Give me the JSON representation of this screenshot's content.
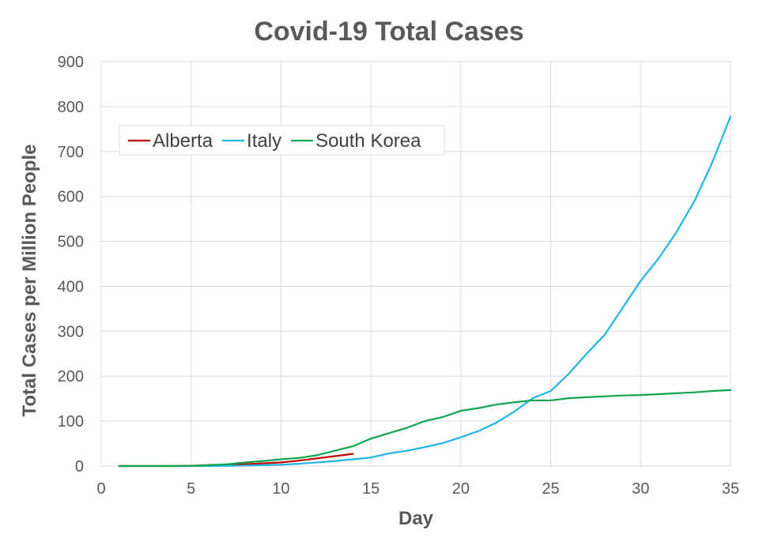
{
  "chart_data": {
    "type": "line",
    "title": "Covid-19 Total Cases",
    "xlabel": "Day",
    "ylabel": "Total Cases per Million People",
    "xlim": [
      0,
      35
    ],
    "ylim": [
      0,
      900
    ],
    "x_ticks": [
      0,
      5,
      10,
      15,
      20,
      25,
      30,
      35
    ],
    "y_ticks": [
      0,
      100,
      200,
      300,
      400,
      500,
      600,
      700,
      800,
      900
    ],
    "grid": true,
    "legend_position": "top-left",
    "series": [
      {
        "name": "Alberta",
        "color": "#c00000",
        "x": [
          1,
          2,
          3,
          4,
          5,
          6,
          7,
          8,
          9,
          10,
          11,
          12,
          13,
          14
        ],
        "y": [
          0,
          0,
          0,
          0,
          0.5,
          2,
          3,
          4,
          6,
          8,
          12,
          17,
          22,
          27
        ]
      },
      {
        "name": "Italy",
        "color": "#1fb4e3",
        "x": [
          1,
          2,
          3,
          4,
          5,
          6,
          7,
          8,
          9,
          10,
          11,
          12,
          13,
          14,
          15,
          16,
          17,
          18,
          19,
          20,
          21,
          22,
          23,
          24,
          25,
          26,
          27,
          28,
          29,
          30,
          31,
          32,
          33,
          34,
          35
        ],
        "y": [
          0,
          0,
          0,
          0,
          0,
          0,
          0.5,
          1,
          2,
          3,
          5,
          8,
          11,
          15,
          19,
          28,
          34,
          42,
          51,
          64,
          78,
          97,
          122,
          151,
          167,
          205,
          250,
          292,
          352,
          412,
          462,
          521,
          590,
          677,
          778
        ]
      },
      {
        "name": "South Korea",
        "color": "#10a350",
        "x": [
          1,
          2,
          3,
          4,
          5,
          6,
          7,
          8,
          9,
          10,
          11,
          12,
          13,
          14,
          15,
          16,
          17,
          18,
          19,
          20,
          21,
          22,
          23,
          24,
          25,
          26,
          27,
          28,
          29,
          30,
          31,
          32,
          33,
          34,
          35
        ],
        "y": [
          0,
          0,
          0,
          0,
          0.5,
          2,
          4,
          8,
          11,
          15,
          18,
          24,
          34,
          44,
          61,
          73,
          85,
          100,
          109,
          123,
          129,
          137,
          142,
          146,
          146,
          151,
          153,
          155,
          157,
          158,
          160,
          162,
          164,
          167,
          169
        ]
      }
    ]
  }
}
